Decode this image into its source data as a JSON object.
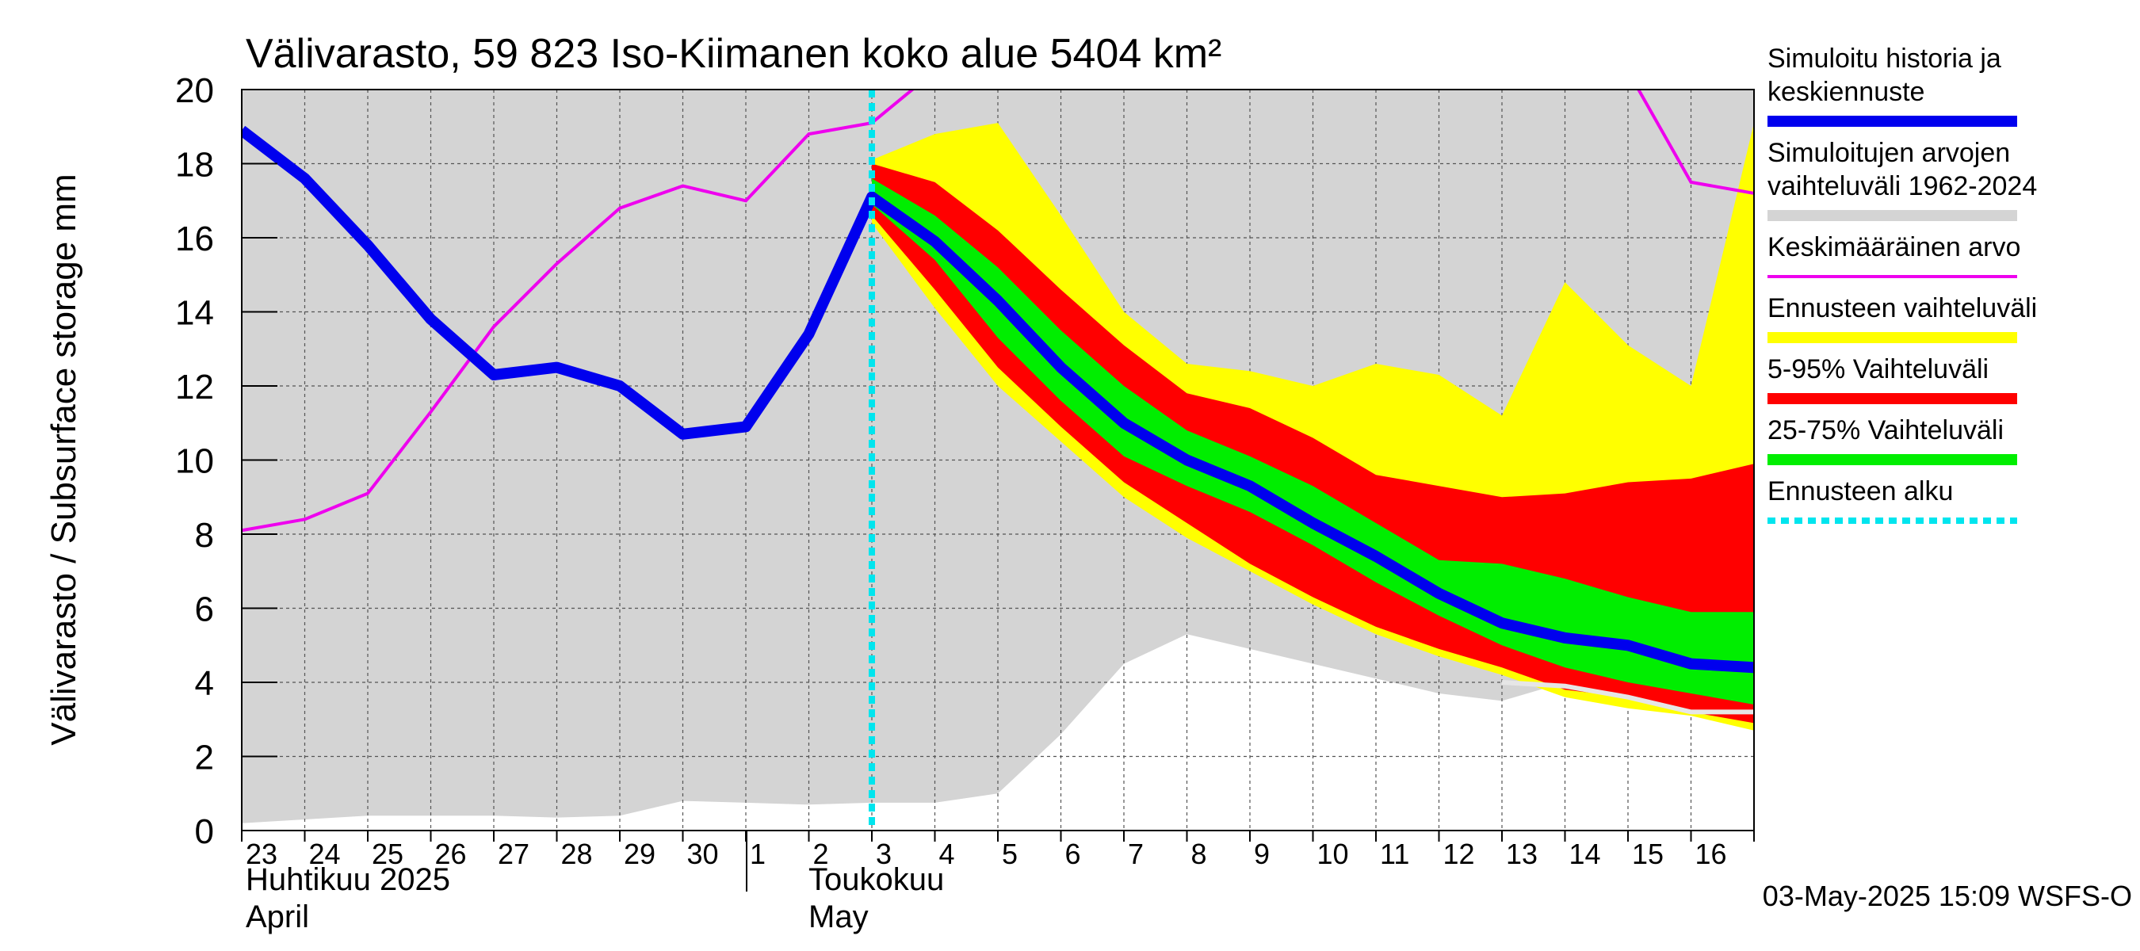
{
  "chart_data": {
    "type": "area",
    "title": "Välivarasto, 59 823 Iso-Kiimanen koko alue 5404 km²",
    "ylabel": "Välivarasto / Subsurface storage  mm",
    "xlabel": "",
    "ylim": [
      0,
      20
    ],
    "y_ticks": [
      0,
      2,
      4,
      6,
      8,
      10,
      12,
      14,
      16,
      18,
      20
    ],
    "grid": true,
    "x_ticks": [
      "23",
      "24",
      "25",
      "26",
      "27",
      "28",
      "29",
      "30",
      "1",
      "2",
      "3",
      "4",
      "5",
      "6",
      "7",
      "8",
      "9",
      "10",
      "11",
      "12",
      "13",
      "14",
      "15",
      "16"
    ],
    "month_labels": {
      "april_fi": "Huhtikuu  2025",
      "april_en": "April",
      "may_fi": "Toukokuu",
      "may_en": "May"
    },
    "x_unit": "days since 2025-04-23",
    "x_range": [
      0,
      24
    ],
    "forecast_start": 10,
    "footer": "03-May-2025 15:09 WSFS-O",
    "legend": {
      "position": "right",
      "entries": [
        {
          "lines": [
            "Simuloitu historia ja",
            "keskiennuste"
          ],
          "color": "#0000ee",
          "style": "thick"
        },
        {
          "lines": [
            "Simuloitujen arvojen",
            "vaihteluväli 1962-2024"
          ],
          "color": "#d4d4d4",
          "style": "thick"
        },
        {
          "lines": [
            "Keskimääräinen arvo"
          ],
          "color": "#ee00ee",
          "style": "thin"
        },
        {
          "lines": [
            "Ennusteen vaihteluväli"
          ],
          "color": "#ffff00",
          "style": "thick"
        },
        {
          "lines": [
            "5-95% Vaihteluväli"
          ],
          "color": "#ff0000",
          "style": "thick"
        },
        {
          "lines": [
            "25-75% Vaihteluväli"
          ],
          "color": "#00ee00",
          "style": "thick"
        },
        {
          "lines": [
            "Ennusteen alku"
          ],
          "color": "#00e5ee",
          "style": "dashed"
        }
      ]
    },
    "series": {
      "hist_range": {
        "name": "Simuloitujen arvojen vaihteluväli 1962-2024",
        "color": "#d4d4d4",
        "x": [
          0,
          1,
          2,
          3,
          4,
          5,
          6,
          7,
          8,
          9,
          10,
          11,
          12,
          13,
          14,
          15,
          16,
          17,
          18,
          19,
          20,
          21,
          22,
          23,
          24
        ],
        "upper": [
          20,
          20,
          20,
          20,
          20,
          20,
          20,
          20,
          20,
          20,
          20,
          20,
          20,
          20,
          20,
          20,
          20,
          20,
          20,
          20,
          20,
          20,
          20,
          20,
          20
        ],
        "lower": [
          0.2,
          0.3,
          0.4,
          0.4,
          0.4,
          0.35,
          0.4,
          0.8,
          0.75,
          0.7,
          0.75,
          0.75,
          1.0,
          2.6,
          4.5,
          5.3,
          4.9,
          4.5,
          4.1,
          3.7,
          3.5,
          4.0,
          3.7,
          3.2,
          3.0
        ]
      },
      "forecast_range": {
        "name": "Ennusteen vaihteluväli",
        "color": "#ffff00",
        "x": [
          10,
          11,
          12,
          13,
          14,
          15,
          16,
          17,
          18,
          19,
          20,
          21,
          22,
          23,
          24
        ],
        "upper": [
          18.1,
          18.8,
          19.1,
          16.6,
          14.0,
          12.6,
          12.4,
          12.0,
          12.6,
          12.3,
          11.2,
          14.8,
          13.1,
          12.0,
          19.1
        ],
        "lower": [
          16.4,
          14.1,
          12.0,
          10.5,
          9.0,
          7.9,
          7.0,
          6.1,
          5.3,
          4.7,
          4.2,
          3.6,
          3.3,
          3.1,
          2.7
        ]
      },
      "p5_95": {
        "name": "5-95% Vaihteluväli",
        "color": "#ff0000",
        "x": [
          10,
          11,
          12,
          13,
          14,
          15,
          16,
          17,
          18,
          19,
          20,
          21,
          22,
          23,
          24
        ],
        "upper": [
          18.0,
          17.5,
          16.2,
          14.6,
          13.1,
          11.8,
          11.4,
          10.6,
          9.6,
          9.3,
          9.0,
          9.1,
          9.4,
          9.5,
          9.9
        ],
        "lower": [
          16.6,
          14.6,
          12.5,
          10.9,
          9.4,
          8.3,
          7.2,
          6.3,
          5.5,
          4.9,
          4.4,
          3.8,
          3.6,
          3.2,
          2.9
        ]
      },
      "p25_75": {
        "name": "25-75% Vaihteluväli",
        "color": "#00ee00",
        "x": [
          10,
          11,
          12,
          13,
          14,
          15,
          16,
          17,
          18,
          19,
          20,
          21,
          22,
          23,
          24
        ],
        "upper": [
          17.6,
          16.6,
          15.2,
          13.5,
          12.0,
          10.8,
          10.1,
          9.3,
          8.3,
          7.3,
          7.2,
          6.8,
          6.3,
          5.9,
          5.9
        ],
        "lower": [
          16.9,
          15.4,
          13.3,
          11.6,
          10.1,
          9.3,
          8.6,
          7.7,
          6.7,
          5.8,
          5.0,
          4.4,
          4.0,
          3.7,
          3.4
        ]
      },
      "median": {
        "name": "Simuloitu historia ja keskiennuste",
        "color": "#0000ee",
        "x": [
          0,
          1,
          2,
          3,
          4,
          5,
          6,
          7,
          8,
          9,
          10,
          11,
          12,
          13,
          14,
          15,
          16,
          17,
          18,
          19,
          20,
          21,
          22,
          23,
          24
        ],
        "y": [
          18.9,
          17.6,
          15.8,
          13.8,
          12.3,
          12.5,
          12.0,
          10.7,
          10.9,
          13.4,
          17.1,
          15.9,
          14.3,
          12.5,
          11.0,
          10.0,
          9.3,
          8.3,
          7.4,
          6.4,
          5.6,
          5.2,
          5.0,
          4.5,
          4.4
        ]
      },
      "mean": {
        "name": "Keskimääräinen arvo",
        "color": "#ee00ee",
        "x": [
          0,
          1,
          2,
          3,
          4,
          5,
          6,
          7,
          8,
          9,
          10,
          11,
          22,
          23,
          24
        ],
        "y": [
          8.1,
          8.4,
          9.1,
          11.3,
          13.6,
          15.3,
          16.8,
          17.4,
          17.0,
          18.8,
          19.1,
          20.5,
          20.5,
          17.5,
          17.2
        ]
      },
      "white_line": {
        "name": "",
        "color": "#e6e6e6",
        "x": [
          20,
          21,
          22,
          23,
          24
        ],
        "y": [
          4.0,
          3.9,
          3.6,
          3.2,
          3.2
        ]
      }
    }
  }
}
